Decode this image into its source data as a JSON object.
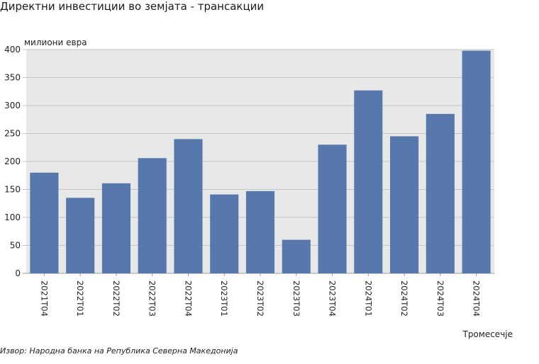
{
  "title": "Директни инвестиции во земјата - трансакции",
  "source": "Извор: Народна банка на Република Северна Македонија",
  "chart_data": {
    "type": "bar",
    "categories": [
      "2021Т04",
      "2022Т01",
      "2022Т02",
      "2022Т03",
      "2022Т04",
      "2023Т01",
      "2023Т02",
      "2023Т03",
      "2023Т04",
      "2024Т01",
      "2024Т02",
      "2024Т03",
      "2024Т04"
    ],
    "values": [
      180,
      135,
      161,
      206,
      240,
      141,
      147,
      60,
      230,
      327,
      245,
      285,
      398
    ],
    "ylabel": "милиони евра",
    "xlabel": "Тромесечје",
    "ylim": [
      0,
      400
    ],
    "yticks": [
      0,
      50,
      100,
      150,
      200,
      250,
      300,
      350,
      400
    ],
    "grid": true,
    "colors": {
      "bar": "#5778ac",
      "plot_bg": "#e8e8e8",
      "grid": "#c4c4c4"
    }
  }
}
